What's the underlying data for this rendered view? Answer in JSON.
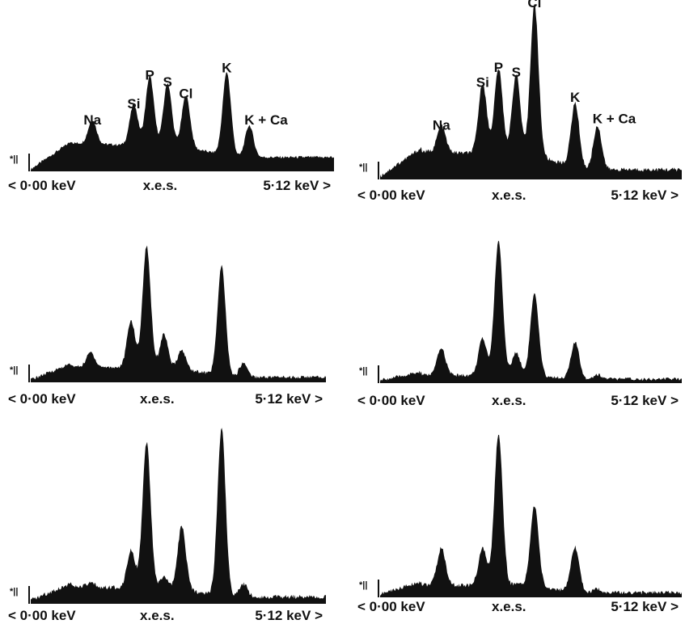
{
  "chart_data": [
    {
      "type": "area",
      "x_range_kev": [
        0.0,
        5.12
      ],
      "x_start_label": "< 0·00 keV",
      "x_mid_label": "x.e.s.",
      "x_end_label": "5·12 keV >",
      "marker": "*||",
      "peaks": [
        {
          "label": "Na",
          "kev": 1.04,
          "height": 0.37
        },
        {
          "label": "Si",
          "kev": 1.74,
          "height": 0.52
        },
        {
          "label": "P",
          "kev": 2.01,
          "height": 0.78
        },
        {
          "label": "S",
          "kev": 2.31,
          "height": 0.72
        },
        {
          "label": "Cl",
          "kev": 2.62,
          "height": 0.61
        },
        {
          "label": "K",
          "kev": 3.31,
          "height": 0.85
        },
        {
          "label": "K + Ca",
          "kev": 3.69,
          "height": 0.37
        }
      ]
    },
    {
      "type": "area",
      "x_range_kev": [
        0.0,
        5.12
      ],
      "x_start_label": "< 0·00 keV",
      "x_mid_label": "x.e.s.",
      "x_end_label": "5·12 keV >",
      "marker": "*||",
      "peaks": [
        {
          "label": "Na",
          "kev": 1.04,
          "height": 0.26
        },
        {
          "label": "Si",
          "kev": 1.74,
          "height": 0.52
        },
        {
          "label": "P",
          "kev": 2.01,
          "height": 0.61
        },
        {
          "label": "S",
          "kev": 2.31,
          "height": 0.58
        },
        {
          "label": "Cl",
          "kev": 2.62,
          "height": 1.0
        },
        {
          "label": "K",
          "kev": 3.31,
          "height": 0.43
        },
        {
          "label": "K + Ca",
          "kev": 3.69,
          "height": 0.3
        }
      ]
    },
    {
      "type": "area",
      "x_range_kev": [
        0.0,
        5.12
      ],
      "x_start_label": "< 0·00 keV",
      "x_mid_label": "x.e.s.",
      "x_end_label": "5·12 keV >",
      "marker": "*||",
      "peaks": [
        {
          "kev": 1.04,
          "height": 0.18
        },
        {
          "kev": 1.74,
          "height": 0.42
        },
        {
          "kev": 2.01,
          "height": 0.98
        },
        {
          "kev": 2.31,
          "height": 0.32
        },
        {
          "kev": 2.62,
          "height": 0.2
        },
        {
          "kev": 3.31,
          "height": 0.85
        },
        {
          "kev": 3.69,
          "height": 0.13
        }
      ]
    },
    {
      "type": "area",
      "x_range_kev": [
        0.0,
        5.12
      ],
      "x_start_label": "< 0·00 keV",
      "x_mid_label": "x.e.s.",
      "x_end_label": "5·12 keV >",
      "marker": "*||",
      "peaks": [
        {
          "kev": 1.04,
          "height": 0.23
        },
        {
          "kev": 1.74,
          "height": 0.3
        },
        {
          "kev": 2.01,
          "height": 1.0
        },
        {
          "kev": 2.31,
          "height": 0.2
        },
        {
          "kev": 2.62,
          "height": 0.62
        },
        {
          "kev": 3.31,
          "height": 0.28
        },
        {
          "kev": 3.69,
          "height": 0.05
        }
      ]
    },
    {
      "type": "area",
      "x_range_kev": [
        0.0,
        5.12
      ],
      "x_start_label": "< 0·00 keV",
      "x_mid_label": "x.e.s.",
      "x_end_label": "5·12 keV >",
      "marker": "*||",
      "peaks": [
        {
          "kev": 1.04,
          "height": 0.08
        },
        {
          "kev": 1.74,
          "height": 0.28
        },
        {
          "kev": 2.01,
          "height": 0.9
        },
        {
          "kev": 2.31,
          "height": 0.12
        },
        {
          "kev": 2.62,
          "height": 0.42
        },
        {
          "kev": 3.31,
          "height": 1.0
        },
        {
          "kev": 3.69,
          "height": 0.1
        }
      ]
    },
    {
      "type": "area",
      "x_range_kev": [
        0.0,
        5.12
      ],
      "x_start_label": "< 0·00 keV",
      "x_mid_label": "x.e.s.",
      "x_end_label": "5·12 keV >",
      "marker": "*||",
      "peaks": [
        {
          "kev": 1.04,
          "height": 0.28
        },
        {
          "kev": 1.74,
          "height": 0.28
        },
        {
          "kev": 2.01,
          "height": 1.0
        },
        {
          "kev": 2.31,
          "height": 0.06
        },
        {
          "kev": 2.62,
          "height": 0.55
        },
        {
          "kev": 3.31,
          "height": 0.3
        },
        {
          "kev": 3.69,
          "height": 0.04
        }
      ]
    }
  ]
}
